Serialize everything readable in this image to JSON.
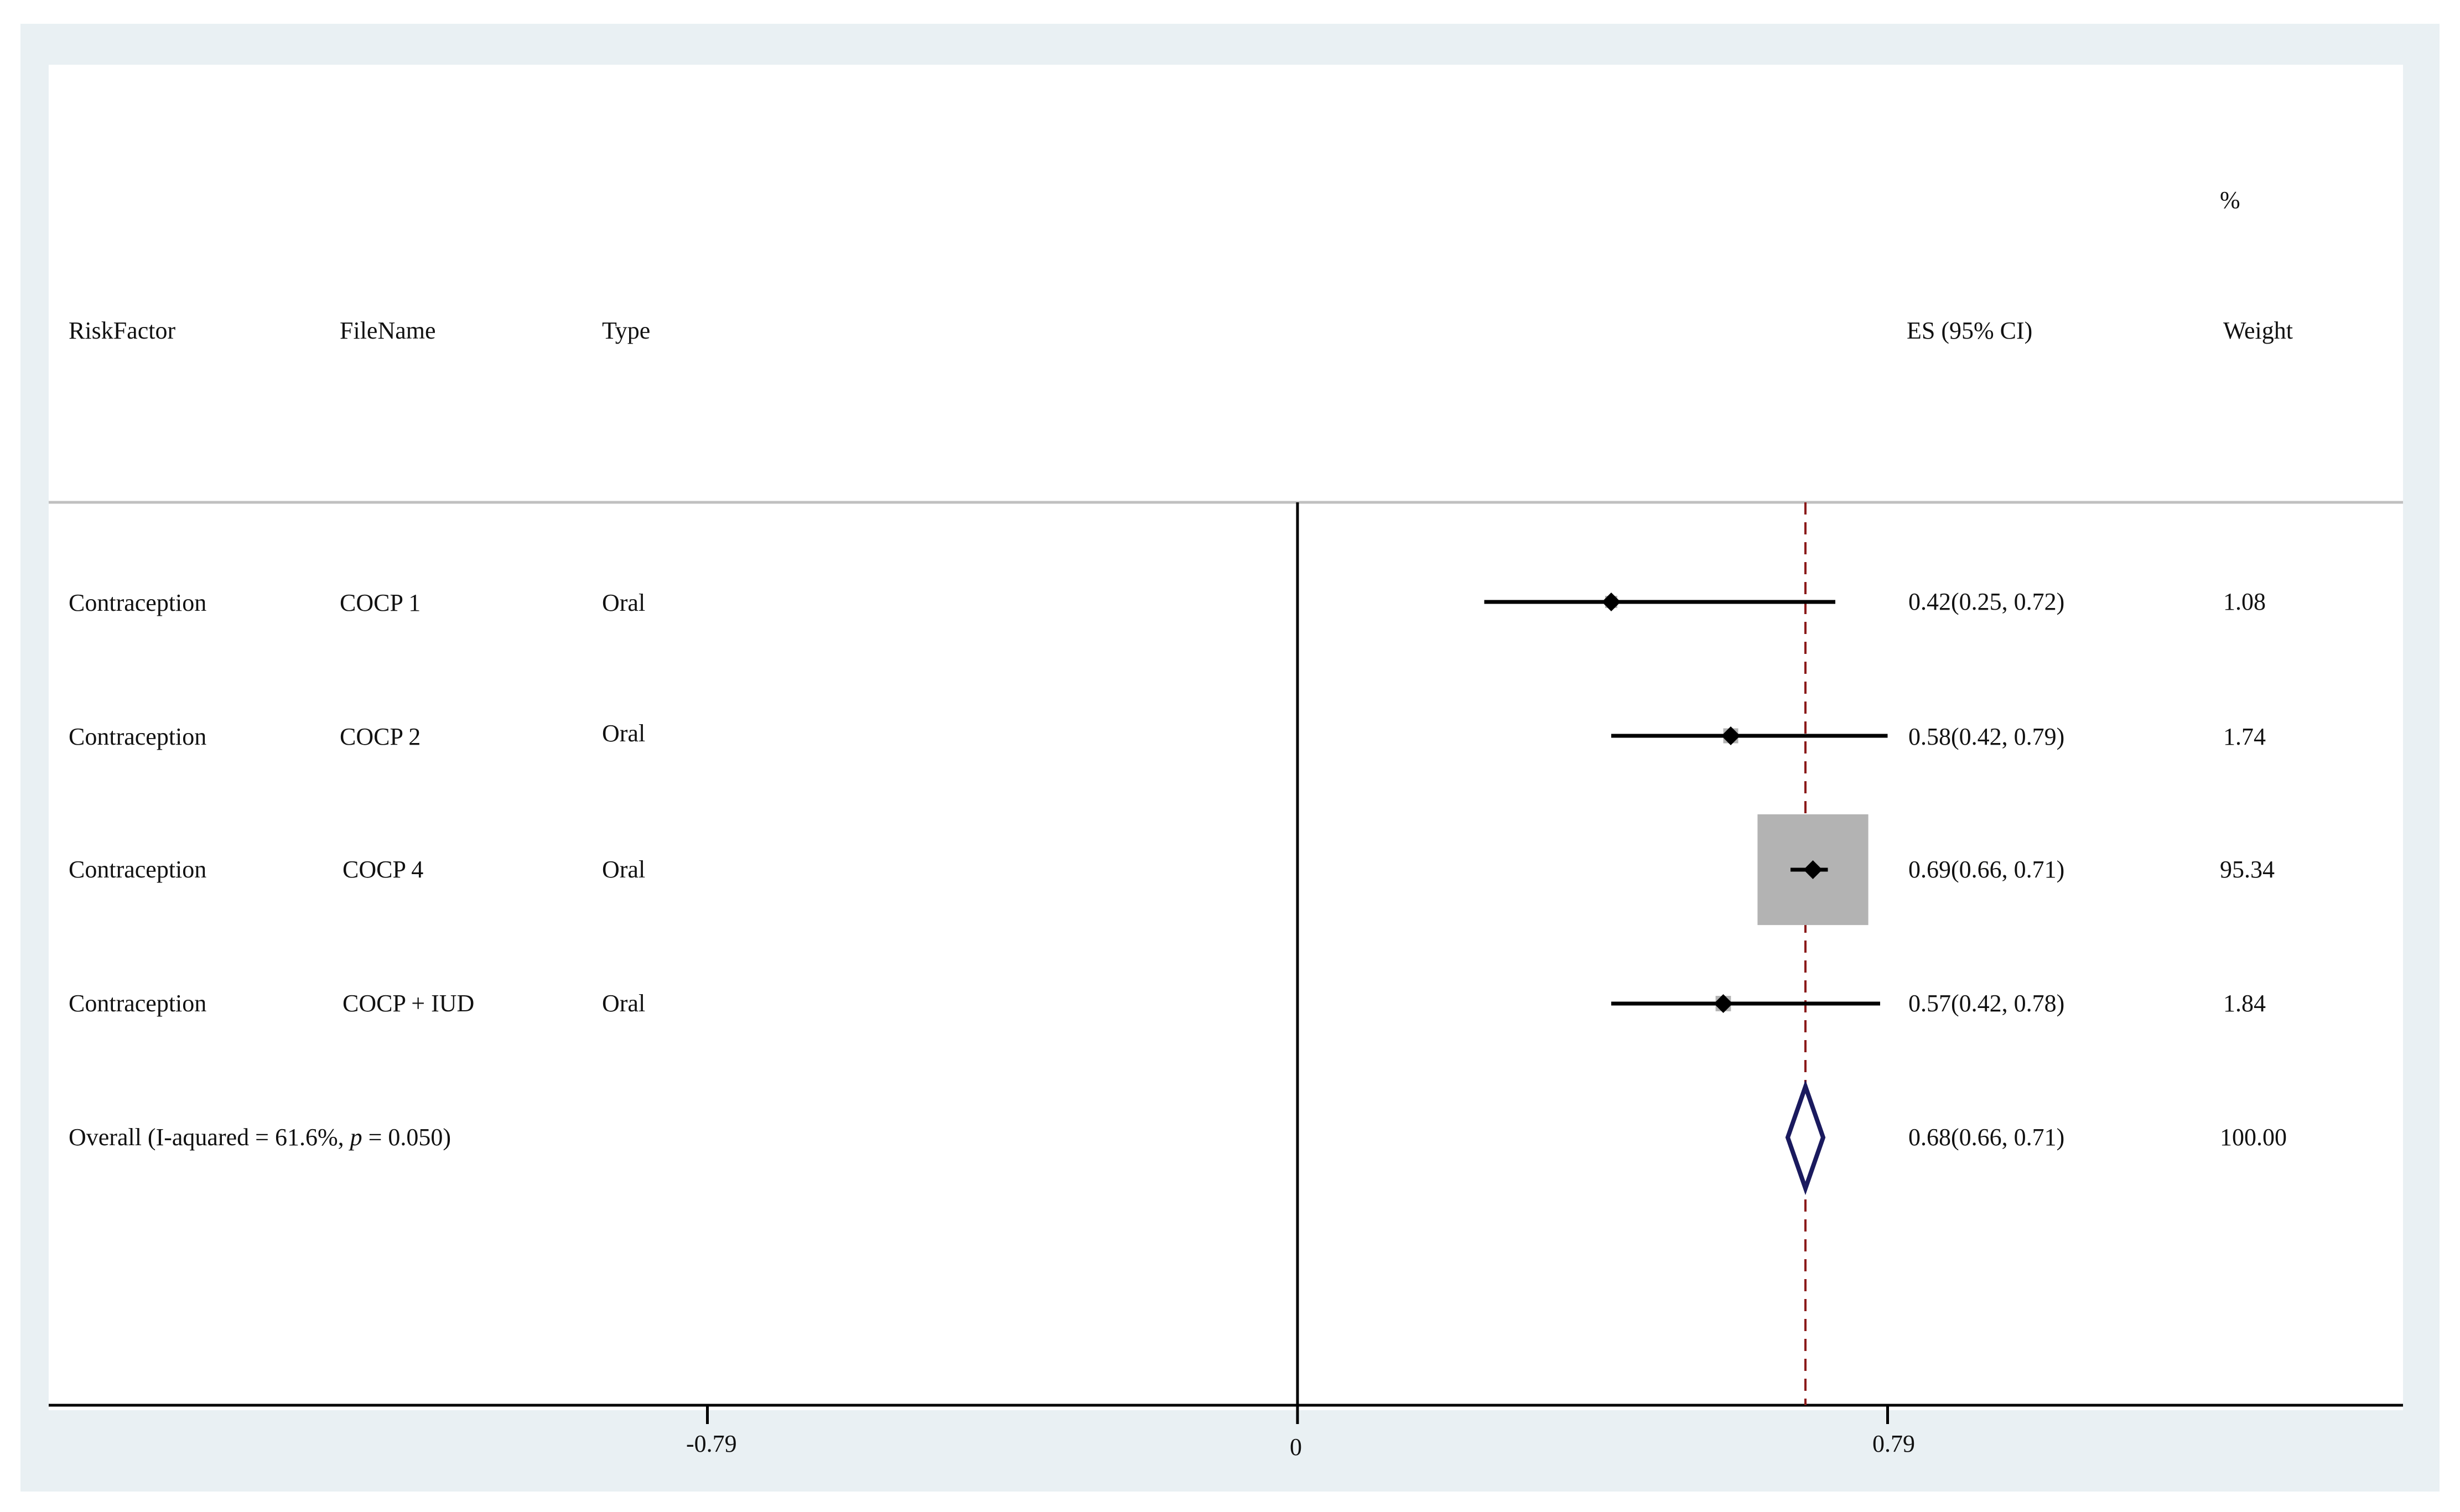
{
  "chart_data": {
    "type": "forest",
    "columns": {
      "risk_factor": "RiskFactor",
      "file_name": "FileName",
      "type": "Type",
      "es": "ES (95% CI)",
      "weight_top": "%",
      "weight": "Weight"
    },
    "rows": [
      {
        "risk_factor": "Contraception",
        "file_name": "COCP 1",
        "type": "Oral",
        "es": 0.42,
        "lo": 0.25,
        "hi": 0.72,
        "es_label": "0.42(0.25, 0.72)",
        "weight": 1.08,
        "weight_label": "1.08"
      },
      {
        "risk_factor": "Contraception",
        "file_name": "COCP 2",
        "type": "Oral",
        "es": 0.58,
        "lo": 0.42,
        "hi": 0.79,
        "es_label": "0.58(0.42, 0.79)",
        "weight": 1.74,
        "weight_label": "1.74"
      },
      {
        "risk_factor": "Contraception",
        "file_name": "COCP 4",
        "type": "Oral",
        "es": 0.69,
        "lo": 0.66,
        "hi": 0.71,
        "es_label": "0.69(0.66, 0.71)",
        "weight": 95.34,
        "weight_label": "95.34"
      },
      {
        "risk_factor": "Contraception",
        "file_name": "COCP + IUD",
        "type": "Oral",
        "es": 0.57,
        "lo": 0.42,
        "hi": 0.78,
        "es_label": "0.57(0.42, 0.78)",
        "weight": 1.84,
        "weight_label": "1.84"
      }
    ],
    "overall": {
      "label_prefix": "Overall (I-aquared = 61.6%, ",
      "label_p": "p",
      "label_suffix": " = 0.050)",
      "es": 0.68,
      "lo": 0.66,
      "hi": 0.71,
      "es_label": "0.68(0.66, 0.71)",
      "weight_label": "100.00"
    },
    "x_ticks": [
      {
        "value": -0.79,
        "label": "-0.79"
      },
      {
        "value": 0,
        "label": "0"
      },
      {
        "value": 0.79,
        "label": "0.79"
      }
    ],
    "xlim": [
      -1.68,
      1.5
    ],
    "null_line": 0,
    "pooled_line": 0.68,
    "colors": {
      "background": "#e9f0f3",
      "plot_bg": "#ffffff",
      "ci_line": "#000000",
      "weight_box": "#b3b3b3",
      "overall_diamond": "#1a1a5e",
      "pooled_line": "#8b1a1a",
      "separator": "#c0c0c0"
    }
  }
}
